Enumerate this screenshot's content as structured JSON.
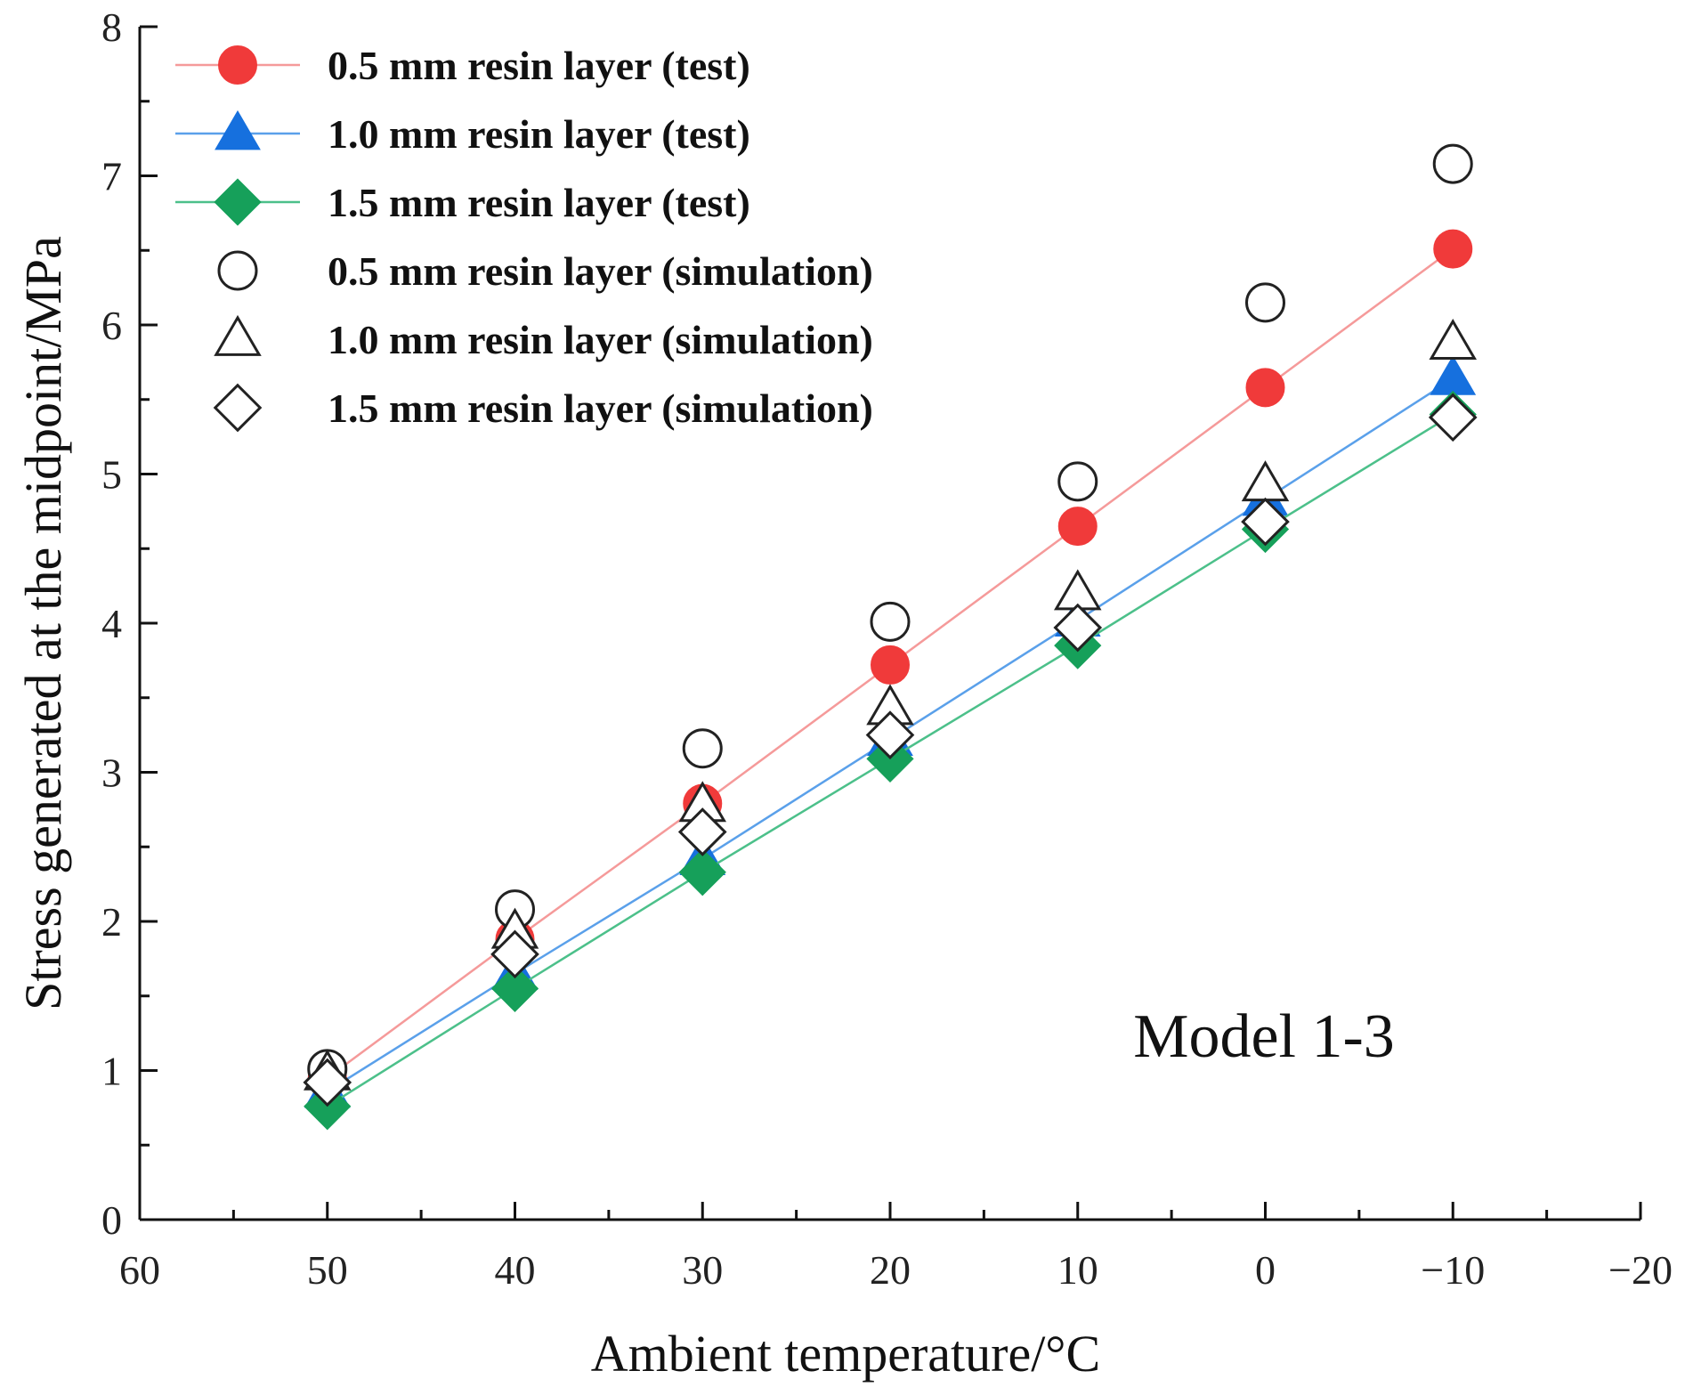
{
  "chart_data": {
    "type": "line",
    "title": "",
    "xlabel": "Ambient temperature/°C",
    "ylabel": "Stress generated at the midpoint/MPa",
    "xlim": [
      60,
      -20
    ],
    "ylim": [
      0,
      8
    ],
    "x_ticks": [
      60,
      50,
      40,
      30,
      20,
      10,
      0,
      -10,
      -20
    ],
    "x_tick_labels": [
      "60",
      "50",
      "40",
      "30",
      "20",
      "10",
      "0",
      "−10",
      "−20"
    ],
    "y_ticks": [
      0,
      1,
      2,
      3,
      4,
      5,
      6,
      7,
      8
    ],
    "y_tick_labels": [
      "0",
      "1",
      "2",
      "3",
      "4",
      "5",
      "6",
      "7",
      "8"
    ],
    "grid": false,
    "legend_position": "top-left",
    "annotation": "Model 1-3",
    "x": [
      50,
      40,
      30,
      20,
      10,
      0,
      -10
    ],
    "series": [
      {
        "name": "0.5 mm resin layer (test)",
        "marker": "circle",
        "filled": true,
        "line": true,
        "color": "#f03a3a",
        "line_color": "#f59a9a",
        "values": [
          0.95,
          1.88,
          2.79,
          3.72,
          4.65,
          5.58,
          6.51
        ]
      },
      {
        "name": "1.0 mm resin layer (test)",
        "marker": "triangle",
        "filled": true,
        "line": true,
        "color": "#1670de",
        "line_color": "#5aa0ea",
        "values": [
          0.86,
          1.65,
          2.42,
          3.22,
          4.02,
          4.83,
          5.64
        ]
      },
      {
        "name": "1.5 mm resin layer (test)",
        "marker": "diamond",
        "filled": true,
        "line": true,
        "color": "#16a05a",
        "line_color": "#4cc08a",
        "values": [
          0.76,
          1.55,
          2.33,
          3.09,
          3.85,
          4.63,
          5.4
        ]
      },
      {
        "name": "0.5 mm resin layer (simulation)",
        "marker": "circle",
        "filled": false,
        "line": false,
        "color": "#222222",
        "values": [
          1.01,
          2.08,
          3.16,
          4.01,
          4.95,
          6.15,
          7.08
        ]
      },
      {
        "name": "1.0 mm resin layer (simulation)",
        "marker": "triangle",
        "filled": false,
        "line": false,
        "color": "#222222",
        "values": [
          0.98,
          1.93,
          2.78,
          3.43,
          4.2,
          4.93,
          5.88
        ]
      },
      {
        "name": "1.5 mm resin layer (simulation)",
        "marker": "diamond",
        "filled": false,
        "line": false,
        "color": "#222222",
        "values": [
          0.92,
          1.78,
          2.6,
          3.25,
          3.97,
          4.68,
          5.38
        ]
      }
    ]
  }
}
